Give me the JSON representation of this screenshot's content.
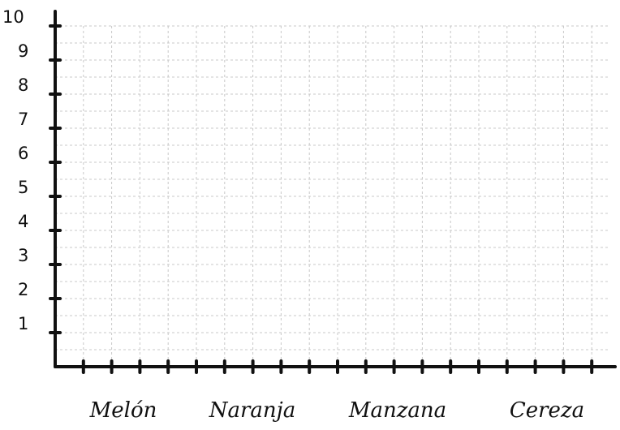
{
  "chart_data": {
    "type": "bar",
    "categories": [
      "Melón",
      "Naranja",
      "Manzana",
      "Cereza"
    ],
    "y_ticks": [
      "1",
      "2",
      "3",
      "4",
      "5",
      "6",
      "7",
      "8",
      "9",
      "10"
    ],
    "ylim": [
      0,
      10
    ],
    "series": [],
    "grid": true,
    "title": "",
    "xlabel": "",
    "ylabel": ""
  }
}
